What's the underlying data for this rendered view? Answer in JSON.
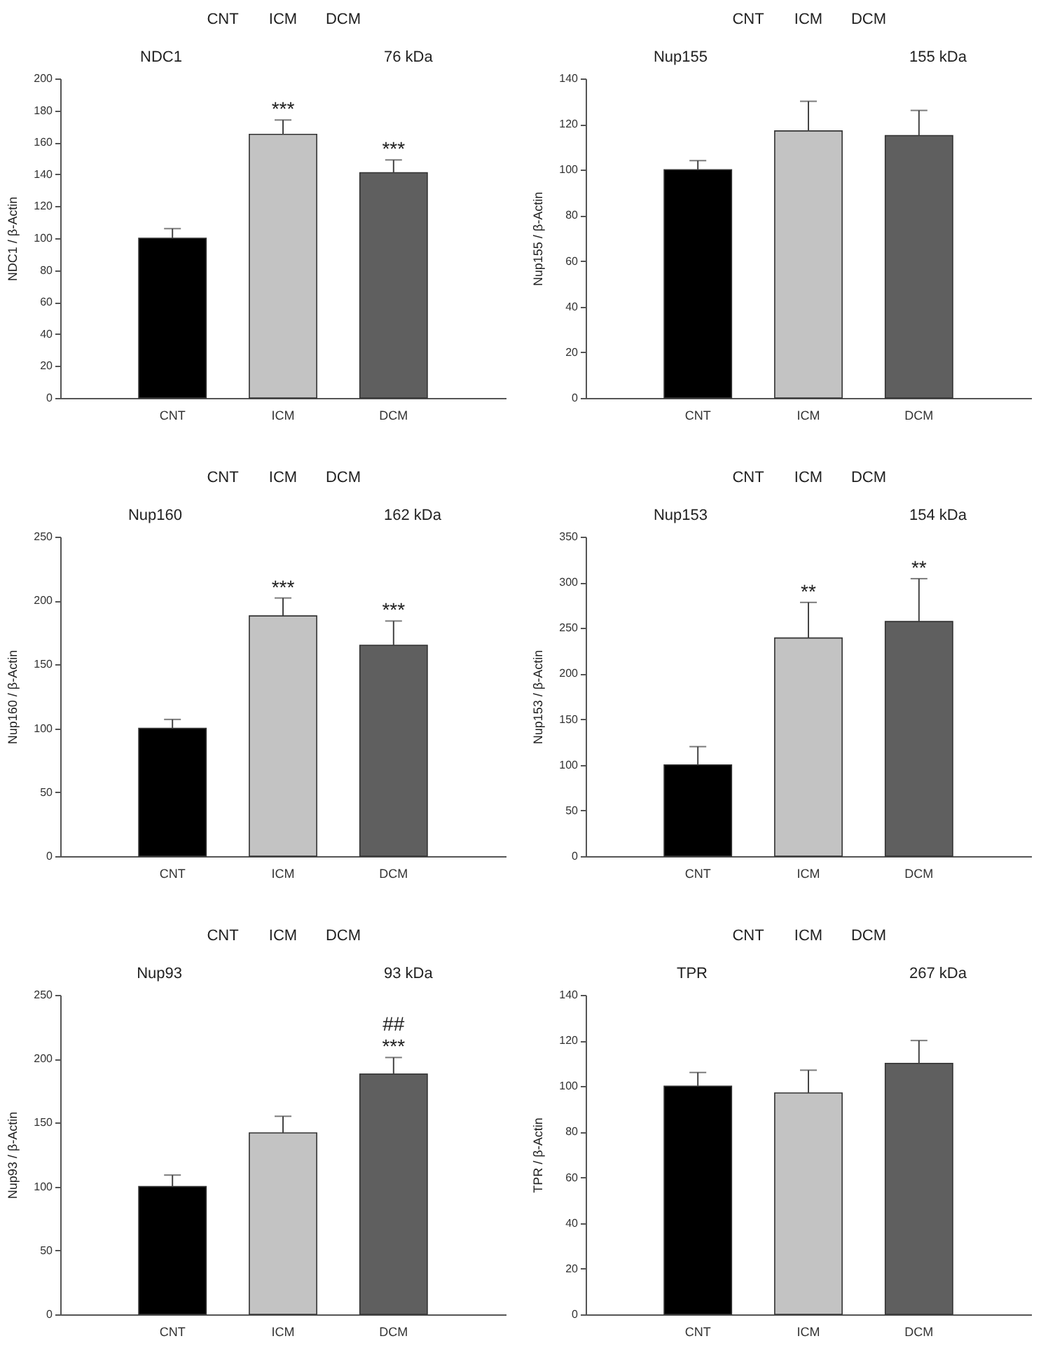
{
  "chart_data": [
    {
      "type": "bar",
      "ylabel": "NDC1 / β-Actin",
      "categories": [
        "CNT",
        "ICM",
        "DCM"
      ],
      "values": [
        100,
        165,
        141
      ],
      "colors": [
        "#000000",
        "#c3c3c3",
        "#5f5f5f"
      ],
      "errors": [
        [
          100,
          106
        ],
        [
          165,
          174
        ],
        [
          141,
          149
        ]
      ],
      "ylim": [
        0,
        200
      ],
      "yticks": [
        0,
        20,
        40,
        60,
        80,
        100,
        120,
        140,
        160,
        180,
        200
      ],
      "annotations": [
        "CNT",
        "ICM",
        "DCM",
        "NDC1",
        "76 kDa",
        {
          "text": "***",
          "x": "ICM",
          "y": 165
        },
        {
          "text": "***",
          "x": "DCM",
          "y": 141
        }
      ]
    },
    {
      "type": "bar",
      "ylabel": "Nup155 / β-Actin",
      "categories": [
        "CNT",
        "ICM",
        "DCM"
      ],
      "values": [
        100,
        117,
        115
      ],
      "colors": [
        "#000000",
        "#c3c3c3",
        "#5f5f5f"
      ],
      "errors": [
        [
          100,
          104
        ],
        [
          117,
          130
        ],
        [
          115,
          126
        ]
      ],
      "ylim": [
        0,
        140
      ],
      "yticks": [
        0,
        20,
        40,
        60,
        80,
        100,
        120,
        140
      ],
      "annotations": [
        "CNT",
        "ICM",
        "DCM",
        "Nup155",
        "155 kDa"
      ]
    },
    {
      "type": "bar",
      "ylabel": "Nup160 / β-Actin",
      "categories": [
        "CNT",
        "ICM",
        "DCM"
      ],
      "values": [
        100,
        188,
        165
      ],
      "colors": [
        "#000000",
        "#c3c3c3",
        "#5f5f5f"
      ],
      "errors": [
        [
          100,
          107
        ],
        [
          188,
          202
        ],
        [
          165,
          184
        ]
      ],
      "ylim": [
        0,
        250
      ],
      "yticks": [
        0,
        50,
        100,
        150,
        200,
        250
      ],
      "annotations": [
        "CNT",
        "ICM",
        "DCM",
        "Nup160",
        "162 kDa",
        {
          "text": "***",
          "x": "ICM",
          "y": 188
        },
        {
          "text": "***",
          "x": "DCM",
          "y": 165
        }
      ]
    },
    {
      "type": "bar",
      "ylabel": "Nup153 / β-Actin",
      "categories": [
        "CNT",
        "ICM",
        "DCM"
      ],
      "values": [
        100,
        239,
        257
      ],
      "colors": [
        "#000000",
        "#c3c3c3",
        "#5f5f5f"
      ],
      "errors": [
        [
          100,
          120
        ],
        [
          239,
          278
        ],
        [
          257,
          304
        ]
      ],
      "ylim": [
        0,
        350
      ],
      "yticks": [
        0,
        50,
        100,
        150,
        200,
        250,
        300,
        350
      ],
      "annotations": [
        "CNT",
        "ICM",
        "DCM",
        "Nup153",
        "154 kDa",
        {
          "text": "**",
          "x": "ICM",
          "y": 239
        },
        {
          "text": "**",
          "x": "DCM",
          "y": 257
        }
      ]
    },
    {
      "type": "bar",
      "ylabel": "Nup93 / β-Actin",
      "categories": [
        "CNT",
        "ICM",
        "DCM"
      ],
      "values": [
        100,
        142,
        188
      ],
      "colors": [
        "#000000",
        "#c3c3c3",
        "#5f5f5f"
      ],
      "errors": [
        [
          100,
          109
        ],
        [
          142,
          155
        ],
        [
          188,
          201
        ]
      ],
      "ylim": [
        0,
        250
      ],
      "yticks": [
        0,
        50,
        100,
        150,
        200,
        250
      ],
      "annotations": [
        "CNT",
        "ICM",
        "DCM",
        "Nup93",
        "93 kDa",
        {
          "text": "***",
          "x": "DCM",
          "y": 188
        },
        {
          "text": "##",
          "x": "DCM",
          "y": 188
        }
      ]
    },
    {
      "type": "bar",
      "ylabel": "TPR / β-Actin",
      "categories": [
        "CNT",
        "ICM",
        "DCM"
      ],
      "values": [
        100,
        97,
        110
      ],
      "colors": [
        "#000000",
        "#c3c3c3",
        "#5f5f5f"
      ],
      "errors": [
        [
          100,
          106
        ],
        [
          97,
          107
        ],
        [
          110,
          120
        ]
      ],
      "ylim": [
        0,
        140
      ],
      "yticks": [
        0,
        20,
        40,
        60,
        80,
        100,
        120,
        140
      ],
      "annotations": [
        "CNT",
        "ICM",
        "DCM",
        "TPR",
        "267 kDa"
      ]
    }
  ]
}
